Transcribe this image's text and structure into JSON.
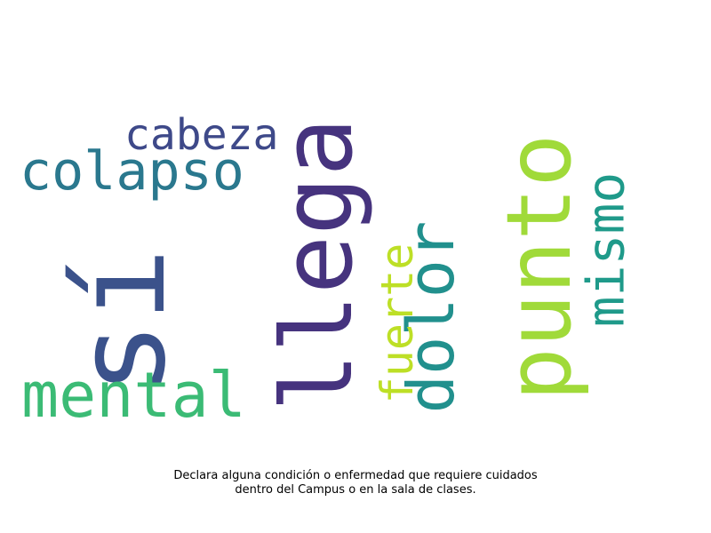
{
  "words": [
    {
      "text": "sí",
      "color": "#3b528b",
      "rotated": true
    },
    {
      "text": "llega",
      "color": "#46337e",
      "rotated": true
    },
    {
      "text": "punto",
      "color": "#a0da39",
      "rotated": true
    },
    {
      "text": "dolor",
      "color": "#21908d",
      "rotated": true
    },
    {
      "text": "mismo",
      "color": "#1f9a8a",
      "rotated": true
    },
    {
      "text": "fuerte",
      "color": "#bddf26",
      "rotated": true
    },
    {
      "text": "colapso",
      "color": "#2a788e",
      "rotated": false
    },
    {
      "text": "cabeza",
      "color": "#3e4989",
      "rotated": false
    },
    {
      "text": "mental",
      "color": "#3bbb75",
      "rotated": false
    }
  ],
  "caption": {
    "line1": "Declara alguna condición o enfermedad que requiere cuidados",
    "line2": "dentro del Campus o en la sala de clases."
  }
}
